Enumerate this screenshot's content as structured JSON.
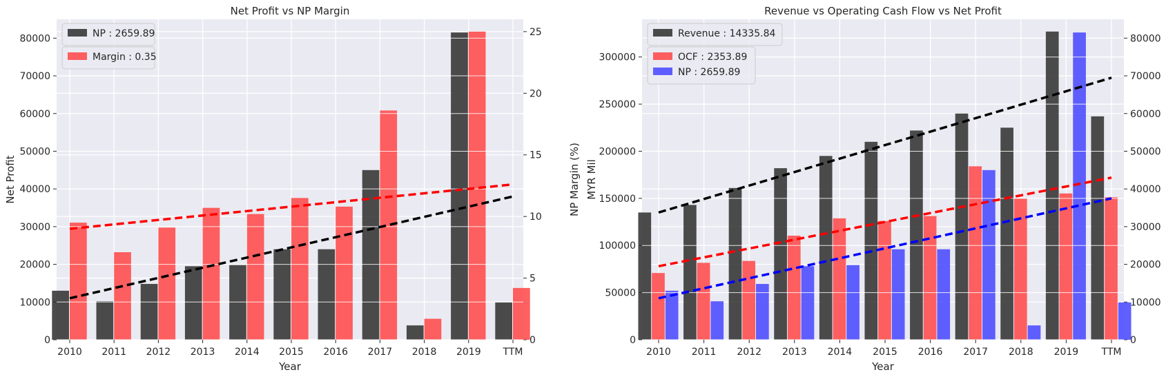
{
  "chart_data": [
    {
      "type": "bar",
      "title": "Net Profit vs NP Margin",
      "xlabel": "Year",
      "ylabel": "Net Profit",
      "ylabel_right": "NP Margin (%)",
      "categories": [
        "2010",
        "2011",
        "2012",
        "2013",
        "2014",
        "2015",
        "2016",
        "2017",
        "2018",
        "2019",
        "TTM"
      ],
      "ylim": [
        0,
        85000
      ],
      "yticks": [
        0,
        10000,
        20000,
        30000,
        40000,
        50000,
        60000,
        70000,
        80000
      ],
      "ylim_right": [
        0,
        26
      ],
      "yticks_right": [
        0,
        5,
        10,
        15,
        20,
        25
      ],
      "series": [
        {
          "name": "NP : 2659.89",
          "axis": "left",
          "color": "#333333",
          "values": [
            13000,
            10200,
            14800,
            19500,
            19800,
            24000,
            24000,
            45000,
            3800,
            81500,
            9900
          ]
        },
        {
          "name": "Margin : 0.35",
          "axis": "right",
          "color": "#ff4a4a",
          "values": [
            9.5,
            7.1,
            9.1,
            10.7,
            10.2,
            11.5,
            10.8,
            18.6,
            1.7,
            25.0,
            4.2
          ]
        }
      ],
      "trendlines": [
        {
          "axis": "left",
          "color": "#000000",
          "from": [
            0,
            11000
          ],
          "to": [
            10,
            38000
          ]
        },
        {
          "axis": "right",
          "color": "#ff0000",
          "from": [
            0,
            9.0
          ],
          "to": [
            10,
            12.6
          ]
        }
      ],
      "legend": "top-left",
      "grid": true
    },
    {
      "type": "bar",
      "title": "Revenue vs Operating Cash Flow vs Net Profit",
      "xlabel": "Year",
      "ylabel": "MYR Mil",
      "categories": [
        "2010",
        "2011",
        "2012",
        "2013",
        "2014",
        "2015",
        "2016",
        "2017",
        "2018",
        "2019",
        "TTM"
      ],
      "ylim": [
        0,
        340000
      ],
      "yticks": [
        0,
        50000,
        100000,
        150000,
        200000,
        250000,
        300000
      ],
      "ylim_right": [
        0,
        85000
      ],
      "yticks_right": [
        0,
        10000,
        20000,
        30000,
        40000,
        50000,
        60000,
        70000,
        80000
      ],
      "series": [
        {
          "name": "Revenue : 14335.84",
          "axis": "left",
          "color": "#333333",
          "values": [
            135000,
            143000,
            161000,
            182000,
            195000,
            210000,
            222000,
            240000,
            225000,
            327000,
            237000
          ]
        },
        {
          "name": "OCF : 2353.89",
          "axis": "right",
          "color": "#ff4a4a",
          "values": [
            17700,
            20400,
            20900,
            27600,
            32200,
            31500,
            32800,
            46000,
            37500,
            38800,
            37800
          ]
        },
        {
          "name": "NP : 2659.89",
          "axis": "right",
          "color": "#4a4aff",
          "values": [
            13000,
            10200,
            14800,
            19500,
            19800,
            24000,
            24000,
            45000,
            3800,
            81500,
            9900
          ]
        }
      ],
      "trendlines": [
        {
          "axis": "left",
          "color": "#000000",
          "from": [
            0,
            135000
          ],
          "to": [
            10,
            278000
          ]
        },
        {
          "axis": "right",
          "color": "#ff0000",
          "from": [
            0,
            19500
          ],
          "to": [
            10,
            43000
          ]
        },
        {
          "axis": "right",
          "color": "#0000ff",
          "from": [
            0,
            11000
          ],
          "to": [
            10,
            37500
          ]
        }
      ],
      "legend": "top-left",
      "grid": true
    }
  ]
}
